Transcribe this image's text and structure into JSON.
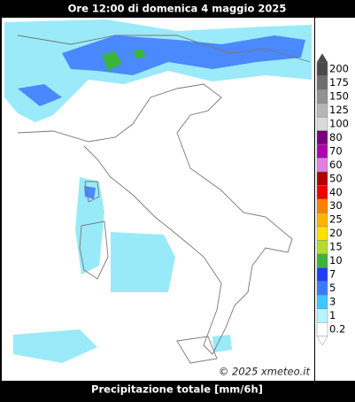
{
  "header": {
    "title": "Ore 12:00 di domenica 4 maggio 2025"
  },
  "legend": {
    "items": [
      {
        "label": 200,
        "color": "#4a4a4a"
      },
      {
        "label": 175,
        "color": "#6e6e6e"
      },
      {
        "label": 150,
        "color": "#929292"
      },
      {
        "label": 125,
        "color": "#b6b6b6"
      },
      {
        "label": 100,
        "color": "#dadada"
      },
      {
        "label": 80,
        "color": "#7a007a"
      },
      {
        "label": 70,
        "color": "#b000b0"
      },
      {
        "label": 60,
        "color": "#e080e0"
      },
      {
        "label": 50,
        "color": "#b00000"
      },
      {
        "label": 40,
        "color": "#f00000"
      },
      {
        "label": 30,
        "color": "#ff8000"
      },
      {
        "label": 25,
        "color": "#ffb400"
      },
      {
        "label": 20,
        "color": "#ffe000"
      },
      {
        "label": 15,
        "color": "#b4dc28"
      },
      {
        "label": 10,
        "color": "#3cb43c"
      },
      {
        "label": 7,
        "color": "#1e3cff"
      },
      {
        "label": 5,
        "color": "#3c78ff"
      },
      {
        "label": 3,
        "color": "#3cc8ff"
      },
      {
        "label": 1,
        "color": "#b4f5ff"
      },
      {
        "label": 0.2,
        "color": "#ffffff"
      }
    ]
  },
  "credit": "© 2025 xmeteo.it",
  "footer": {
    "caption": "Precipitazione totale [mm/6h]"
  }
}
